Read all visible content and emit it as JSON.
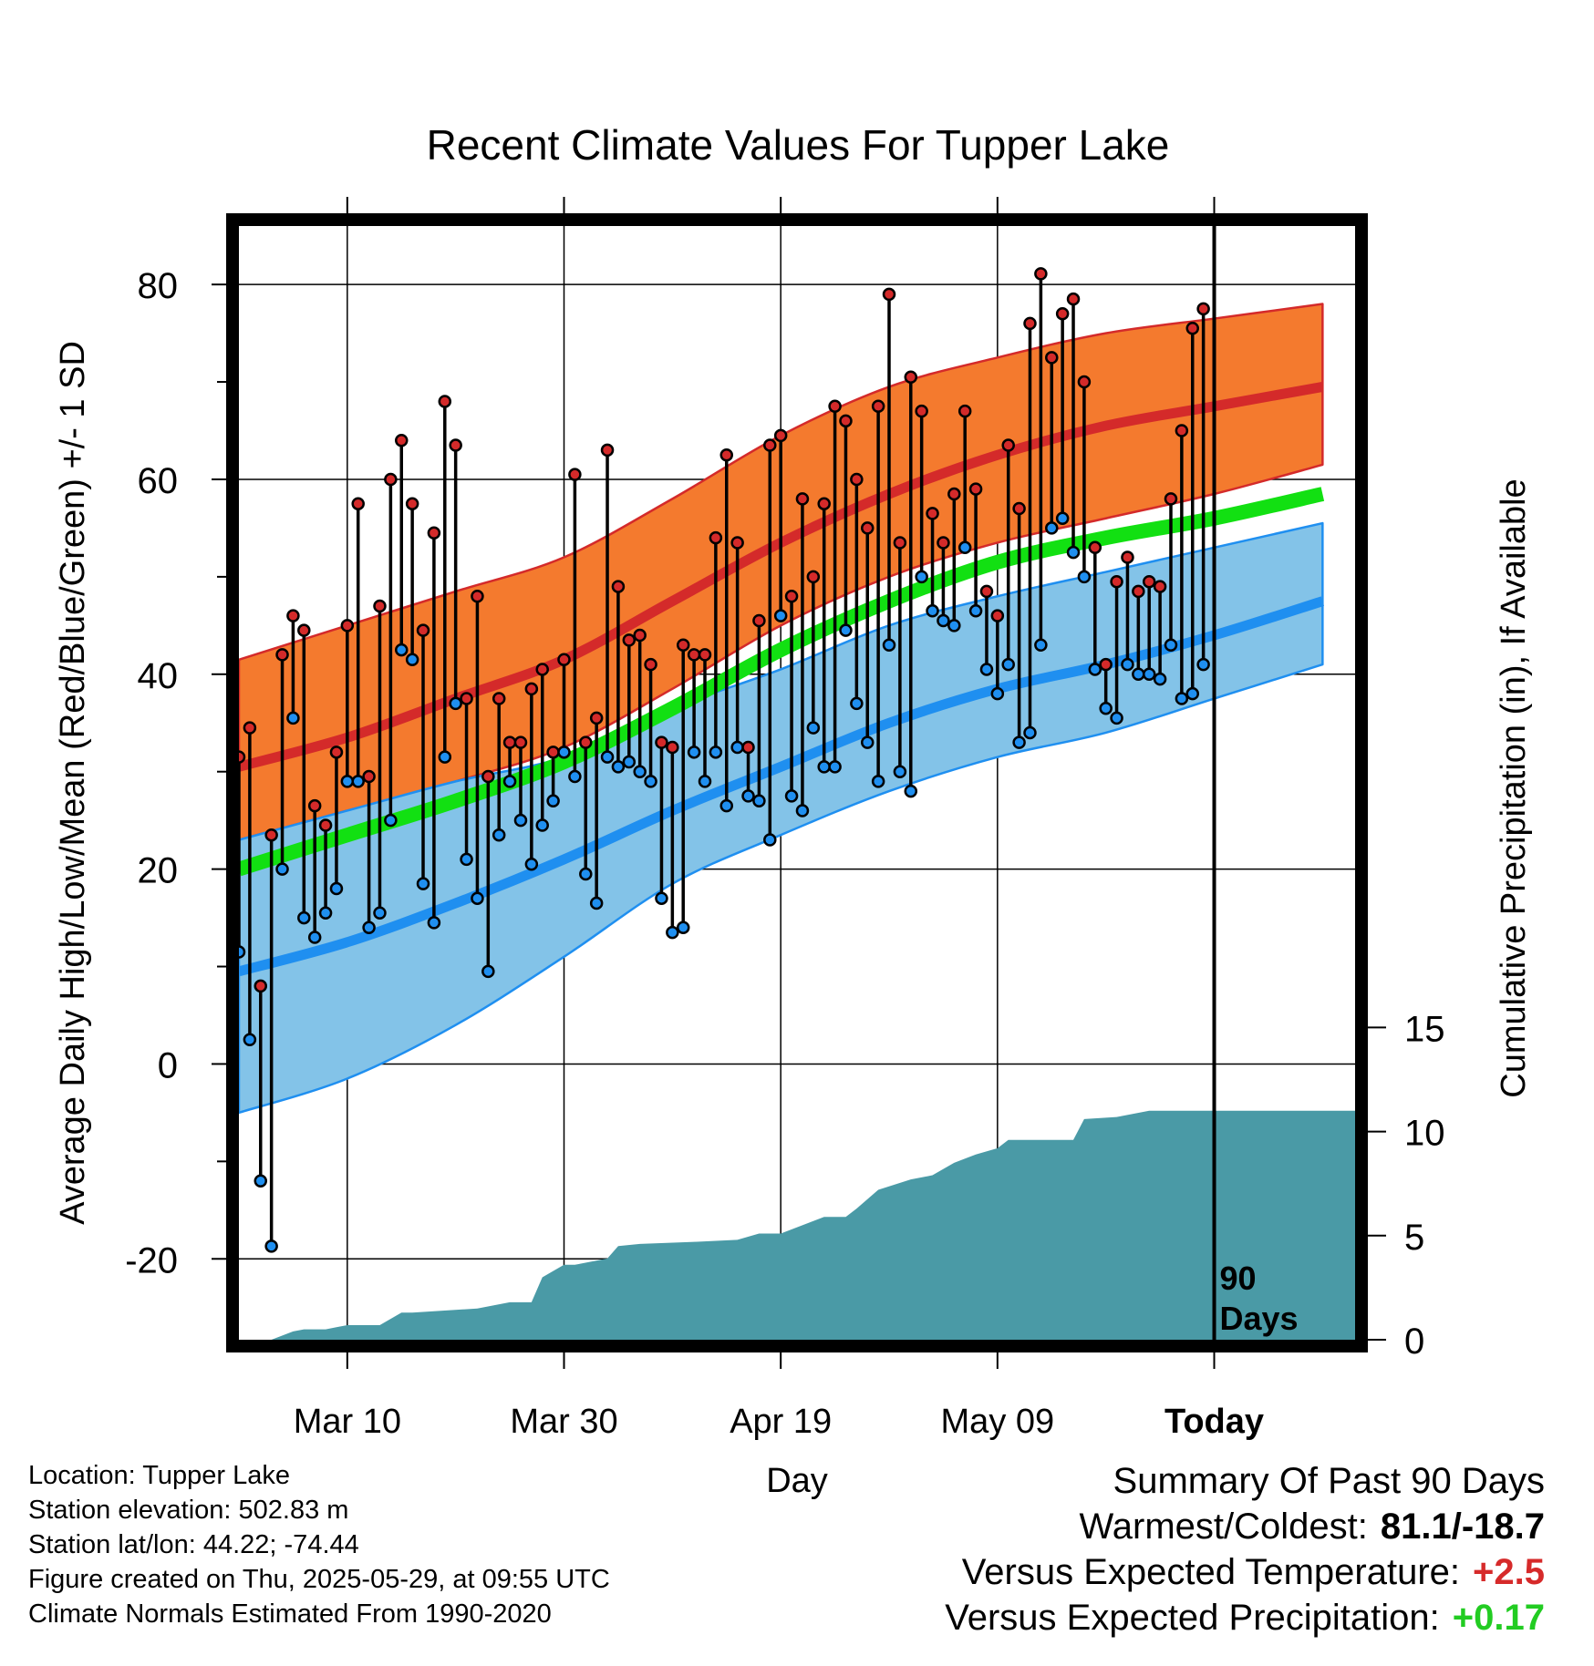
{
  "chart_data": {
    "type": "line",
    "title": "Recent Climate Values For Tupper Lake",
    "xlabel": "Day",
    "ylabel": "Average Daily High/Low/Mean (Red/Blue/Green) +/- 1 SD",
    "y2label": "Cumulative Precipitation (in), If Available",
    "ylim": [
      -28.3,
      86
    ],
    "y_ticks": [
      80,
      60,
      40,
      20,
      0,
      -20
    ],
    "y2lim": [
      0,
      53.5
    ],
    "y2_ticks": [
      15,
      10,
      5,
      0
    ],
    "xlim": [
      "2025-02-28",
      "2025-06-11"
    ],
    "x_ticks": [
      {
        "date": "2025-03-10",
        "label": "Mar 10"
      },
      {
        "date": "2025-03-30",
        "label": "Mar 30"
      },
      {
        "date": "2025-04-19",
        "label": "Apr 19"
      },
      {
        "date": "2025-05-09",
        "label": "May 09"
      },
      {
        "date": "2025-05-29",
        "label": "Today"
      }
    ],
    "today_date": "2025-05-29",
    "today_marker_label": "90\nDays",
    "grid": true,
    "colors": {
      "normal_high_band": "#f47a2e",
      "normal_high_line": "#d42a2a",
      "normal_low_band": "#83c3e8",
      "normal_low_line": "#1f8ff0",
      "normal_mean_line": "#12e012",
      "precip_area": "#4a9aa6",
      "high_marker": "#d42a2a",
      "low_marker": "#1f8ff0"
    },
    "normals": {
      "dates": [
        "2025-02-28",
        "2025-03-10",
        "2025-03-20",
        "2025-03-30",
        "2025-04-09",
        "2025-04-19",
        "2025-04-29",
        "2025-05-09",
        "2025-05-19",
        "2025-05-29",
        "2025-06-08"
      ],
      "high_mean": [
        30.5,
        33.5,
        37.5,
        41.5,
        47.5,
        53.5,
        58.5,
        62.5,
        65.5,
        67.5,
        69.5
      ],
      "high_upper": [
        41.5,
        45.0,
        48.5,
        52.0,
        58.0,
        64.5,
        69.5,
        72.5,
        75.0,
        76.5,
        78.0
      ],
      "high_lower": [
        23.0,
        26.0,
        29.0,
        32.5,
        38.5,
        45.0,
        50.0,
        53.5,
        56.0,
        58.5,
        61.5
      ],
      "mean": [
        20.0,
        23.5,
        27.0,
        31.0,
        36.5,
        42.5,
        47.5,
        51.5,
        54.0,
        56.0,
        58.5
      ],
      "low_mean": [
        9.5,
        12.5,
        16.5,
        21.0,
        26.0,
        30.5,
        35.0,
        38.5,
        41.0,
        44.0,
        47.5
      ],
      "low_upper": [
        23.0,
        26.0,
        29.0,
        31.5,
        36.5,
        40.5,
        45.0,
        48.0,
        50.5,
        53.0,
        55.5
      ],
      "low_lower": [
        -5.0,
        -1.5,
        4.0,
        11.0,
        18.5,
        23.5,
        28.0,
        31.5,
        34.0,
        37.5,
        41.0
      ]
    },
    "daily_start_date": "2025-02-28",
    "daily_high": [
      31.5,
      34.5,
      8.0,
      23.5,
      42.0,
      46.0,
      44.5,
      26.5,
      24.5,
      32.0,
      45.0,
      57.5,
      29.5,
      47.0,
      60.0,
      64.0,
      57.5,
      44.5,
      54.5,
      68.0,
      63.5,
      37.5,
      48.0,
      29.5,
      37.5,
      33.0,
      33.0,
      38.5,
      40.5,
      32.0,
      41.5,
      60.5,
      33.0,
      35.5,
      63.0,
      49.0,
      43.5,
      44.0,
      41.0,
      33.0,
      32.5,
      43.0,
      42.0,
      42.0,
      54.0,
      62.5,
      53.5,
      32.5,
      45.5,
      63.5,
      64.5,
      48.0,
      58.0,
      50.0,
      57.5,
      67.5,
      66.0,
      60.0,
      55.0,
      67.5,
      79.0,
      53.5,
      70.5,
      67.0,
      56.5,
      53.5,
      58.5,
      67.0,
      59.0,
      48.5,
      46.0,
      63.5,
      57.0,
      76.0,
      81.1,
      72.5,
      77.0,
      78.5,
      70.0,
      53.0,
      41.0,
      49.5,
      52.0,
      48.5,
      49.5,
      49.0,
      58.0,
      65.0,
      75.5,
      77.5
    ],
    "daily_low": [
      11.5,
      2.5,
      -12.0,
      -18.7,
      20.0,
      35.5,
      15.0,
      13.0,
      15.5,
      18.0,
      29.0,
      29.0,
      14.0,
      15.5,
      25.0,
      42.5,
      41.5,
      18.5,
      14.5,
      31.5,
      37.0,
      21.0,
      17.0,
      9.5,
      23.5,
      29.0,
      25.0,
      20.5,
      24.5,
      27.0,
      32.0,
      29.5,
      19.5,
      16.5,
      31.5,
      30.5,
      31.0,
      30.0,
      29.0,
      17.0,
      13.5,
      14.0,
      32.0,
      29.0,
      32.0,
      26.5,
      32.5,
      27.5,
      27.0,
      23.0,
      46.0,
      27.5,
      26.0,
      34.5,
      30.5,
      30.5,
      44.5,
      37.0,
      33.0,
      29.0,
      43.0,
      30.0,
      28.0,
      50.0,
      46.5,
      45.5,
      45.0,
      53.0,
      46.5,
      40.5,
      38.0,
      41.0,
      33.0,
      34.0,
      43.0,
      55.0,
      56.0,
      52.5,
      50.0,
      40.5,
      36.5,
      35.5,
      41.0,
      40.0,
      40.0,
      39.5,
      43.0,
      37.5,
      38.0,
      41.0
    ],
    "precip_cumulative": {
      "dates": [
        "2025-02-28",
        "2025-03-03",
        "2025-03-05",
        "2025-03-06",
        "2025-03-08",
        "2025-03-09",
        "2025-03-10",
        "2025-03-13",
        "2025-03-15",
        "2025-03-16",
        "2025-03-22",
        "2025-03-25",
        "2025-03-27",
        "2025-03-28",
        "2025-03-30",
        "2025-03-31",
        "2025-04-03",
        "2025-04-04",
        "2025-04-06",
        "2025-04-11",
        "2025-04-15",
        "2025-04-17",
        "2025-04-19",
        "2025-04-23",
        "2025-04-25",
        "2025-04-26",
        "2025-04-28",
        "2025-05-01",
        "2025-05-03",
        "2025-05-05",
        "2025-05-07",
        "2025-05-09",
        "2025-05-10",
        "2025-05-16",
        "2025-05-17",
        "2025-05-20",
        "2025-05-23",
        "2025-06-11"
      ],
      "values": [
        0.0,
        0.0,
        0.4,
        0.5,
        0.5,
        0.6,
        0.7,
        0.7,
        1.3,
        1.3,
        1.5,
        1.8,
        1.8,
        3.0,
        3.6,
        3.6,
        3.9,
        4.5,
        4.6,
        4.7,
        4.8,
        5.1,
        5.1,
        5.9,
        5.9,
        6.3,
        7.2,
        7.7,
        7.9,
        8.5,
        8.9,
        9.2,
        9.6,
        9.6,
        10.6,
        10.7,
        11.0,
        11.0
      ]
    }
  },
  "station_info": {
    "location": "Location: Tupper Lake",
    "elevation": "Station elevation: 502.83 m",
    "latlon": "Station lat/lon: 44.22; -74.44",
    "created": "Figure created on Thu, 2025-05-29, at 09:55 UTC",
    "normals_period": "Climate Normals Estimated From 1990-2020"
  },
  "summary": {
    "title": "Summary Of Past 90 Days",
    "warm_cold_label": "Warmest/Coldest:",
    "warm_cold_value": "81.1/-18.7",
    "temp_label": "Versus Expected Temperature:",
    "temp_value": "+2.5",
    "precip_label": "Versus Expected Precipitation:",
    "precip_value": "+0.17"
  }
}
